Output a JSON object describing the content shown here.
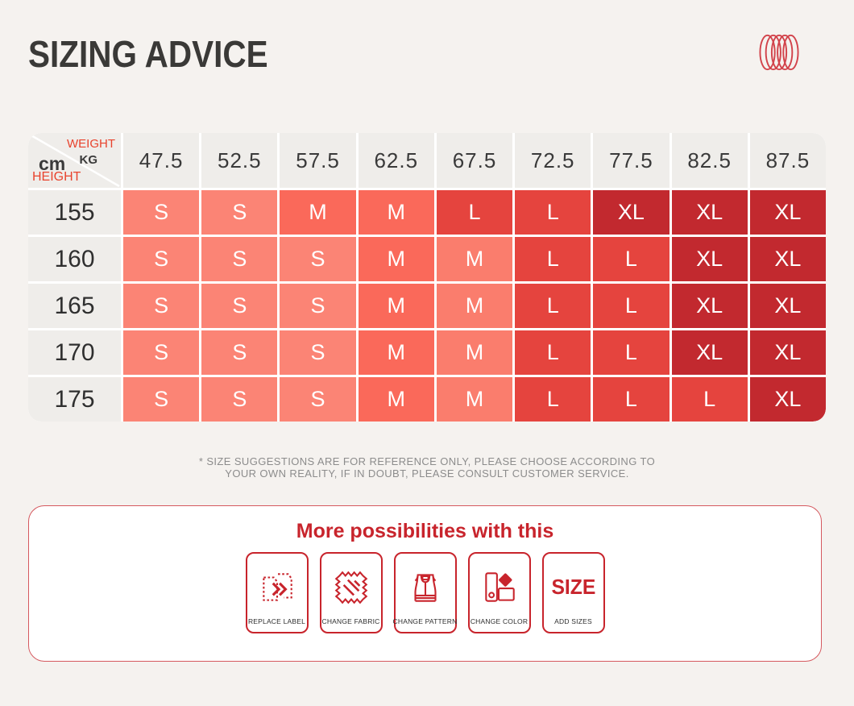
{
  "header": {
    "title": "SIZING ADVICE",
    "logo_color": "#D2434B"
  },
  "chart_data": {
    "type": "table",
    "title": "SIZING ADVICE",
    "xlabel": "WEIGHT KG",
    "ylabel": "HEIGHT cm",
    "columns": [
      "47.5",
      "52.5",
      "57.5",
      "62.5",
      "67.5",
      "72.5",
      "77.5",
      "82.5",
      "87.5"
    ],
    "row_labels": [
      "155",
      "160",
      "165",
      "170",
      "175"
    ],
    "values": [
      [
        "S",
        "S",
        "M",
        "M",
        "L",
        "L",
        "XL",
        "XL",
        "XL"
      ],
      [
        "S",
        "S",
        "S",
        "M",
        "M",
        "L",
        "L",
        "XL",
        "XL"
      ],
      [
        "S",
        "S",
        "S",
        "M",
        "M",
        "L",
        "L",
        "XL",
        "XL"
      ],
      [
        "S",
        "S",
        "S",
        "M",
        "M",
        "L",
        "L",
        "XL",
        "XL"
      ],
      [
        "S",
        "S",
        "S",
        "M",
        "M",
        "L",
        "L",
        "L",
        "XL"
      ]
    ],
    "cell_colors": [
      [
        "s",
        "s",
        "m1",
        "m1",
        "l",
        "l",
        "xl",
        "xl",
        "xl"
      ],
      [
        "s",
        "s",
        "s",
        "m1",
        "m2",
        "l",
        "l",
        "xl",
        "xl"
      ],
      [
        "s",
        "s",
        "s",
        "m1",
        "m2",
        "l",
        "l",
        "xl",
        "xl"
      ],
      [
        "s",
        "s",
        "s",
        "m1",
        "m2",
        "l",
        "l",
        "xl",
        "xl"
      ],
      [
        "s",
        "s",
        "s",
        "m1",
        "m2",
        "l",
        "l",
        "l",
        "xl"
      ]
    ],
    "palette": {
      "s": "#FB8475",
      "m1": "#FA695A",
      "m2": "#FA7D6D",
      "l": "#E5443E",
      "xl": "#C2292F"
    },
    "legend_position": "none",
    "grid": false
  },
  "size_table": {
    "corner": {
      "weight_label": "WEIGHT",
      "weight_unit": "KG",
      "height_unit": "cm",
      "height_label": "HEIGHT"
    },
    "header_bg": "#EFEDEA",
    "accent_text": "#E8432D"
  },
  "disclaimer": {
    "line1": "* SIZE SUGGESTIONS ARE FOR REFERENCE ONLY, PLEASE CHOOSE ACCORDING TO",
    "line2": "YOUR OWN REALITY, IF IN DOUBT, PLEASE CONSULT CUSTOMER SERVICE."
  },
  "possibilities": {
    "title": "More possibilities with this",
    "accent": "#C8242C",
    "cards": [
      {
        "icon": "replace-label-icon",
        "label": "REPLACE LABEL"
      },
      {
        "icon": "change-fabric-icon",
        "label": "CHANGE FABRIC"
      },
      {
        "icon": "change-pattern-icon",
        "label": "CHANGE PATTERN"
      },
      {
        "icon": "change-color-icon",
        "label": "CHANGE COLOR"
      },
      {
        "icon": "size-text",
        "big_text": "SIZE",
        "label": "ADD SIZES"
      }
    ]
  }
}
